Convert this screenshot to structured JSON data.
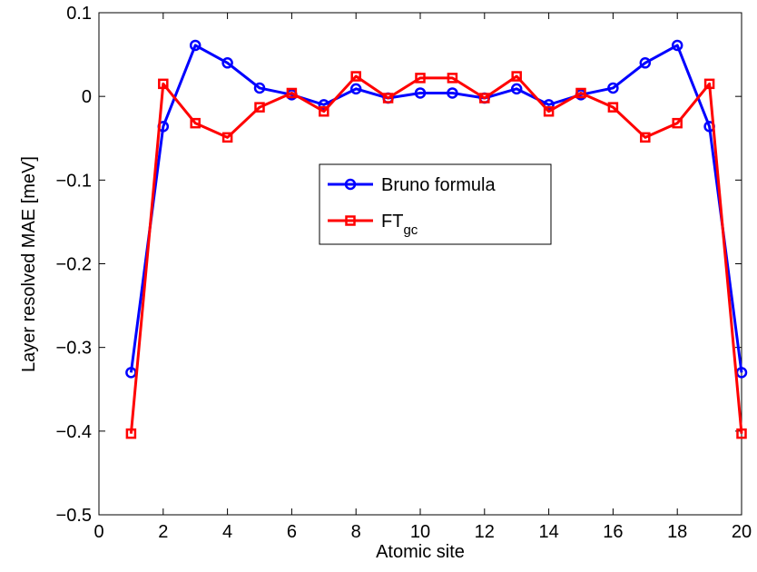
{
  "chart_data": {
    "type": "line",
    "xlabel": "Atomic site",
    "ylabel": "Layer resolved MAE [meV]",
    "xlim": [
      0,
      20
    ],
    "ylim": [
      -0.5,
      0.1
    ],
    "xticks": [
      0,
      2,
      4,
      6,
      8,
      10,
      12,
      14,
      16,
      18,
      20
    ],
    "yticks": [
      -0.5,
      -0.4,
      -0.3,
      -0.2,
      -0.1,
      0,
      0.1
    ],
    "ytick_labels": [
      "−0.5",
      "−0.4",
      "−0.3",
      "−0.2",
      "−0.1",
      "0",
      "0.1"
    ],
    "grid": false,
    "legend_position": "center",
    "x": [
      1,
      2,
      3,
      4,
      5,
      6,
      7,
      8,
      9,
      10,
      11,
      12,
      13,
      14,
      15,
      16,
      17,
      18,
      19,
      20
    ],
    "series": [
      {
        "name": "Bruno formula",
        "color": "#0000ff",
        "marker": "circle",
        "values": [
          -0.33,
          -0.036,
          0.061,
          0.04,
          0.01,
          0.002,
          -0.01,
          0.009,
          -0.002,
          0.004,
          0.004,
          -0.002,
          0.009,
          -0.01,
          0.002,
          0.01,
          0.04,
          0.061,
          -0.036,
          -0.33
        ]
      },
      {
        "name": "FT",
        "name_subscript": "gc",
        "color": "#ff0000",
        "marker": "square",
        "values": [
          -0.403,
          0.015,
          -0.032,
          -0.049,
          -0.013,
          0.004,
          -0.018,
          0.024,
          -0.002,
          0.022,
          0.022,
          -0.002,
          0.024,
          -0.018,
          0.004,
          -0.013,
          -0.049,
          -0.032,
          0.015,
          -0.403
        ]
      }
    ]
  }
}
